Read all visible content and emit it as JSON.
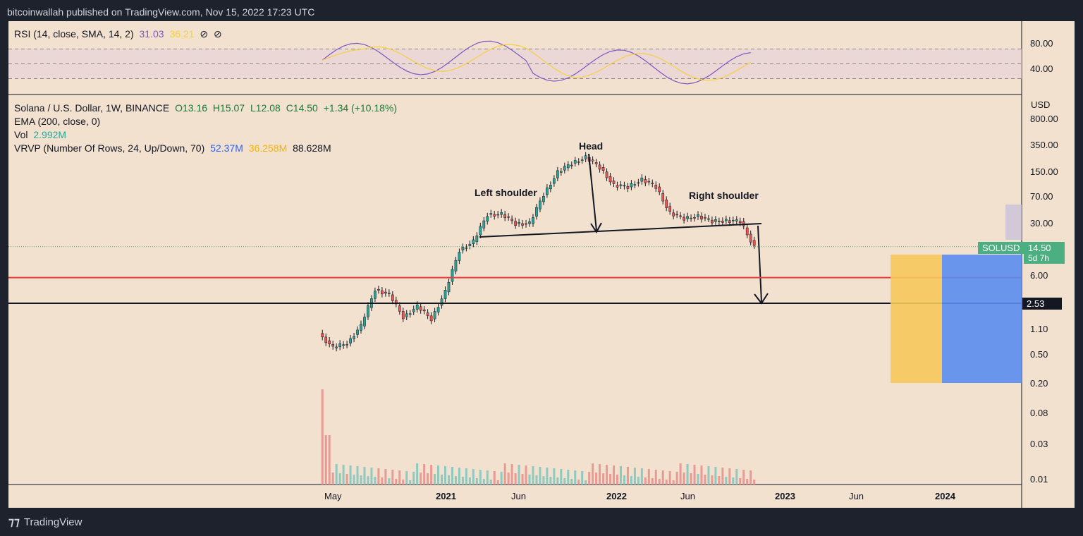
{
  "header": {
    "published": "bitcoinwallah published on TradingView.com, Nov 15, 2022 17:23 UTC"
  },
  "footer": {
    "brand": "TradingView"
  },
  "rsi": {
    "label": "RSI (14, close, SMA, 14, 2)",
    "value": "31.03",
    "sma_value": "36.21",
    "icon1": "⊘",
    "icon2": "⊘",
    "ticks": [
      "80.00",
      "40.00"
    ]
  },
  "main": {
    "symbol": "Solana / U.S. Dollar, 1W, BINANCE",
    "open": "O13.16",
    "high": "H15.07",
    "low": "L12.08",
    "close": "C14.50",
    "change": "+1.34 (+10.18%)",
    "ema": "EMA (200, close, 0)",
    "vol_label": "Vol",
    "vol_value": "2.992M",
    "vrvp_label": "VRVP (Number Of Rows, 24, Up/Down, 70)",
    "vrvp_up": "52.37M",
    "vrvp_down": "36.258M",
    "vrvp_total": "88.628M",
    "currency": "USD",
    "price_ticks": [
      "800.00",
      "350.00",
      "150.00",
      "70.00",
      "30.00",
      "6.00",
      "1.10",
      "0.50",
      "0.20",
      "0.08",
      "0.03",
      "0.01"
    ],
    "x_ticks": [
      "May",
      "2021",
      "Jun",
      "2022",
      "Jun",
      "2023",
      "Jun",
      "2024"
    ],
    "symbol_badge": "SOLUSD",
    "price_badge": "14.50",
    "time_badge": "5d 7h",
    "level_badge": "2.53",
    "annotations": {
      "head": "Head",
      "left_shoulder": "Left shoulder",
      "right_shoulder": "Right shoulder"
    }
  },
  "colors": {
    "up": "#26a69a",
    "down": "#ef5350",
    "rsi": "#7e57c2",
    "rsi_sma": "#f4d03f",
    "bg": "#f2e1cf",
    "frame": "#1e222d",
    "support": "#ef3b3b",
    "target": "#131722",
    "vrvp_up": "#f6c85a",
    "vrvp_down": "#5b8def"
  },
  "chart_data": {
    "type": "candlestick",
    "title": "Solana / U.S. Dollar, 1W, BINANCE",
    "x_range": [
      "2020-04",
      "2024-06"
    ],
    "y_scale": "log",
    "ylim": [
      0.01,
      800
    ],
    "series": [
      {
        "name": "SOLUSD",
        "points": [
          {
            "x": "2020-04",
            "y": 0.95
          },
          {
            "x": "2020-05",
            "y": 0.6
          },
          {
            "x": "2020-06",
            "y": 0.7
          },
          {
            "x": "2020-07",
            "y": 1.2
          },
          {
            "x": "2020-08",
            "y": 3.8
          },
          {
            "x": "2020-09",
            "y": 3.2
          },
          {
            "x": "2020-10",
            "y": 1.6
          },
          {
            "x": "2020-11",
            "y": 2.2
          },
          {
            "x": "2020-12",
            "y": 1.5
          },
          {
            "x": "2021-01",
            "y": 3.5
          },
          {
            "x": "2021-02",
            "y": 13
          },
          {
            "x": "2021-03",
            "y": 17
          },
          {
            "x": "2021-04",
            "y": 40
          },
          {
            "x": "2021-05",
            "y": 40
          },
          {
            "x": "2021-06",
            "y": 30
          },
          {
            "x": "2021-07",
            "y": 30
          },
          {
            "x": "2021-08",
            "y": 75
          },
          {
            "x": "2021-09",
            "y": 150
          },
          {
            "x": "2021-10",
            "y": 200
          },
          {
            "x": "2021-11",
            "y": 240
          },
          {
            "x": "2021-12",
            "y": 175
          },
          {
            "x": "2022-01",
            "y": 100
          },
          {
            "x": "2022-02",
            "y": 95
          },
          {
            "x": "2022-03",
            "y": 120
          },
          {
            "x": "2022-04",
            "y": 95
          },
          {
            "x": "2022-05",
            "y": 42
          },
          {
            "x": "2022-06",
            "y": 35
          },
          {
            "x": "2022-07",
            "y": 38
          },
          {
            "x": "2022-08",
            "y": 32
          },
          {
            "x": "2022-09",
            "y": 33
          },
          {
            "x": "2022-10",
            "y": 32
          },
          {
            "x": "2022-11",
            "y": 14.5
          }
        ]
      }
    ],
    "levels": [
      {
        "name": "support",
        "value": 6.0
      },
      {
        "name": "target",
        "value": 2.53
      }
    ],
    "current_price": 14.5,
    "rsi": {
      "value": 31.03,
      "sma": 36.21,
      "bands": [
        70,
        50,
        30
      ],
      "ylim": [
        20,
        100
      ]
    },
    "annotations": [
      "Head",
      "Left shoulder",
      "Right shoulder"
    ]
  }
}
